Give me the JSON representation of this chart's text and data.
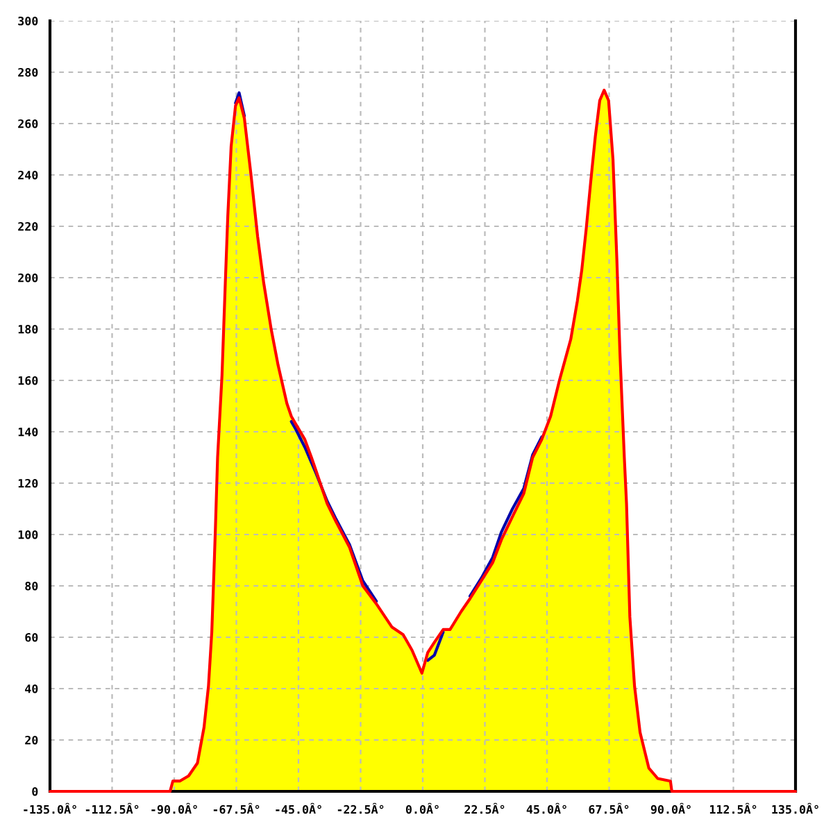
{
  "chart_data": {
    "type": "line",
    "x": [
      -135,
      -91.5,
      -90.5,
      -88,
      -84.8,
      -81.6,
      -79.2,
      -77.6,
      -76.4,
      -75.6,
      -75.1,
      -74.3,
      -72.7,
      -71.5,
      -70.6,
      -69.4,
      -67.8,
      -66.5,
      -64.6,
      -62.2,
      -59.8,
      -57.6,
      -54.9,
      -52.4,
      -49.2,
      -47.6,
      -46,
      -42.7,
      -40.3,
      -38.7,
      -34.6,
      -31.4,
      -26.5,
      -21.7,
      -16.8,
      -11.2,
      -7.1,
      -3.9,
      -0.3,
      1.8,
      4.2,
      7.4,
      9.9,
      13.9,
      17.1,
      21.2,
      25.3,
      28.5,
      32.5,
      36.6,
      39.8,
      43.1,
      46.3,
      49.5,
      53.6,
      56,
      57.6,
      59.2,
      60.8,
      62.5,
      64.1,
      65.7,
      67.3,
      68.9,
      70.3,
      71.4,
      73,
      73.8,
      75,
      76.7,
      78.7,
      81.9,
      85.1,
      89.7,
      90.2,
      135
    ],
    "series": [
      {
        "type": "area",
        "color": "#ffff00",
        "x": [
          -91.5,
          -90.5,
          -88,
          -84.8,
          -81.6,
          -79.2,
          -77.6,
          -76.4,
          -75.6,
          -75.1,
          -74.3,
          -72.7,
          -71.5,
          -70.6,
          -69.4,
          -67.8,
          -66.5,
          -64.6,
          -62.2,
          -59.8,
          -57.6,
          -54.9,
          -52.4,
          -49.2,
          -47.6,
          -46,
          -42.7,
          -40.3,
          -38.7,
          -34.6,
          -31.4,
          -26.5,
          -21.7,
          -16.8,
          -11.2,
          -7.1,
          -3.9,
          -0.3,
          1.8,
          4.2,
          7.4,
          9.9,
          13.9,
          17.1,
          21.2,
          25.3,
          28.5,
          32.5,
          36.6,
          39.8,
          43.1,
          46.3,
          49.5,
          53.6,
          56,
          57.6,
          59.2,
          60.8,
          62.5,
          64.1,
          65.7,
          67.3,
          68.9,
          70.3,
          71.4,
          73,
          73.8,
          75,
          76.7,
          78.7,
          81.9,
          85.1,
          89.7,
          90.2
        ],
        "values": [
          0,
          4,
          4,
          6,
          11,
          25,
          41,
          62,
          86,
          102,
          130,
          162,
          198,
          224,
          251,
          267,
          270,
          262,
          240,
          216,
          198,
          180,
          166,
          151,
          146,
          143,
          137,
          130,
          125,
          112,
          105,
          95,
          80,
          73,
          64,
          61,
          55,
          46,
          54,
          58,
          63,
          63,
          70,
          75,
          82,
          89,
          98,
          107,
          116,
          130,
          137,
          146,
          160,
          176,
          191,
          203,
          219,
          237,
          255,
          269,
          273,
          269,
          246,
          207,
          171,
          130,
          112,
          68,
          41,
          23,
          9,
          5,
          4,
          0
        ]
      },
      {
        "color": "#0000aa",
        "values": [
          null,
          null,
          null,
          null,
          null,
          null,
          null,
          null,
          null,
          null,
          null,
          null,
          null,
          null,
          null,
          null,
          268,
          272,
          263,
          null,
          null,
          null,
          null,
          null,
          null,
          144,
          141,
          134,
          128,
          124,
          113,
          106,
          96,
          82,
          74,
          null,
          null,
          null,
          null,
          51,
          53,
          62,
          null,
          null,
          76,
          83,
          91,
          101,
          110,
          118,
          131,
          138,
          null,
          null,
          null,
          null,
          null,
          null,
          null,
          null,
          null,
          null,
          null,
          null,
          null,
          null,
          null,
          null,
          null,
          null,
          null,
          null,
          null,
          null,
          null,
          null
        ]
      },
      {
        "color": "#ff0000",
        "values": [
          0,
          0,
          4,
          4,
          6,
          11,
          25,
          41,
          62,
          86,
          102,
          130,
          162,
          198,
          224,
          251,
          267,
          270,
          262,
          240,
          216,
          198,
          180,
          166,
          151,
          146,
          143,
          137,
          130,
          125,
          112,
          105,
          95,
          80,
          73,
          64,
          61,
          55,
          46,
          54,
          58,
          63,
          63,
          70,
          75,
          82,
          89,
          98,
          107,
          116,
          130,
          137,
          146,
          160,
          176,
          191,
          203,
          219,
          237,
          255,
          269,
          273,
          269,
          246,
          207,
          171,
          130,
          112,
          68,
          41,
          23,
          9,
          5,
          4,
          0,
          0
        ]
      }
    ],
    "xlim": [
      -135,
      135
    ],
    "xticks": [
      {
        "value": -135,
        "label": "-135.0Â°"
      },
      {
        "value": -112.5,
        "label": "-112.5Â°"
      },
      {
        "value": -90,
        "label": "-90.0Â°"
      },
      {
        "value": -67.5,
        "label": "-67.5Â°"
      },
      {
        "value": -45,
        "label": "-45.0Â°"
      },
      {
        "value": -22.5,
        "label": "-22.5Â°"
      },
      {
        "value": 0,
        "label": "0.0Â°"
      },
      {
        "value": 22.5,
        "label": "22.5Â°"
      },
      {
        "value": 45,
        "label": "45.0Â°"
      },
      {
        "value": 67.5,
        "label": "67.5Â°"
      },
      {
        "value": 90,
        "label": "90.0Â°"
      },
      {
        "value": 112.5,
        "label": "112.5Â°"
      },
      {
        "value": 135,
        "label": "135.0Â°"
      }
    ],
    "ylim": [
      0,
      300
    ],
    "yticks": [
      0,
      20,
      40,
      60,
      80,
      100,
      120,
      140,
      160,
      180,
      200,
      220,
      240,
      260,
      280,
      300
    ],
    "grid": true
  }
}
